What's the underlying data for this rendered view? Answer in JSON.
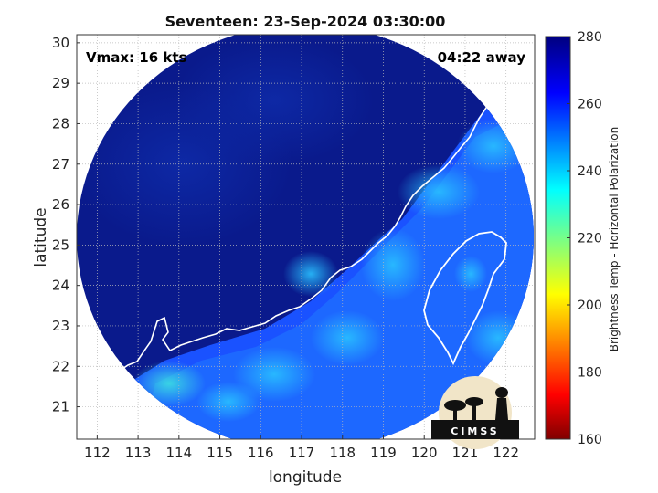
{
  "chart_data": {
    "type": "heatmap",
    "title": "Seventeen: 23-Sep-2024 03:30:00",
    "xlabel": "longitude",
    "ylabel": "latitude",
    "xlim": [
      111.5,
      122.7
    ],
    "ylim": [
      20.2,
      30.2
    ],
    "x_ticks": [
      "112",
      "113",
      "114",
      "115",
      "116",
      "117",
      "118",
      "119",
      "120",
      "121",
      "122"
    ],
    "y_ticks": [
      "21",
      "22",
      "23",
      "24",
      "25",
      "26",
      "27",
      "28",
      "29",
      "30"
    ],
    "grid": true,
    "annotations": {
      "vmax": "Vmax: 16 kts",
      "time_away": "04:22 away"
    },
    "colorbar": {
      "label": "Brightness Temp - Horizontal Polarization",
      "range": [
        160,
        280
      ],
      "ticks": [
        "160",
        "180",
        "200",
        "220",
        "240",
        "260",
        "280"
      ],
      "colormap": "jet"
    },
    "swath": {
      "center_lon": 117.1,
      "center_lat": 25.2,
      "shape": "circle"
    }
  },
  "logo": {
    "text": "CIMSS"
  },
  "colors": {
    "cold_ocean": "#0a1a8c",
    "mid": "#1446ff",
    "warm": "#2aa0ff",
    "coastline": "#ffffff"
  }
}
